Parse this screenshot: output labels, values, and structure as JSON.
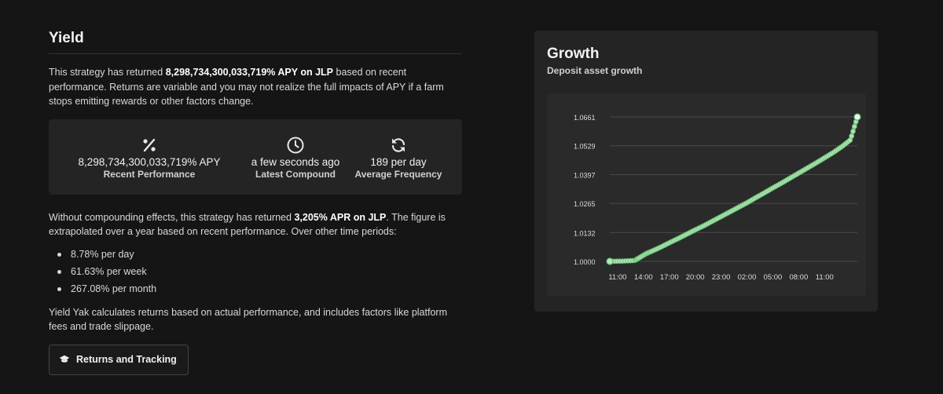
{
  "yield": {
    "title": "Yield",
    "p1_pre": "This strategy has returned ",
    "p1_bold": "8,298,734,300,033,719% APY on JLP",
    "p1_post": " based on recent performance. Returns are variable and you may not realize the full impacts of APY if a farm stops emitting rewards or other factors change.",
    "stats": [
      {
        "icon": "percent-icon",
        "value": "8,298,734,300,033,719% APY",
        "label": "Recent Performance"
      },
      {
        "icon": "clock-icon",
        "value": "a few seconds ago",
        "label": "Latest Compound"
      },
      {
        "icon": "refresh-icon",
        "value": "189 per day",
        "label": "Average Frequency"
      }
    ],
    "p2_pre": "Without compounding effects, this strategy has returned ",
    "p2_bold": "3,205% APR on JLP",
    "p2_post": ". The figure is extrapolated over a year based on recent performance. Over other time periods:",
    "periods": [
      "8.78% per day",
      "61.63% per week",
      "267.08% per month"
    ],
    "p3": "Yield Yak calculates returns based on actual performance, and includes factors like platform fees and trade slippage.",
    "button_label": "Returns and Tracking",
    "button_icon": "graduation-cap-icon"
  },
  "growth": {
    "title": "Growth",
    "subtitle": "Deposit asset growth"
  },
  "colors": {
    "background": "#151515",
    "panel": "#242424",
    "line": "#5cbd6a",
    "point_fill": "#b9e5bd"
  },
  "chart_data": {
    "type": "line",
    "title": "Growth",
    "subtitle": "Deposit asset growth",
    "xlabel": "",
    "ylabel": "",
    "x_ticks": [
      "11:00",
      "14:00",
      "17:00",
      "20:00",
      "23:00",
      "02:00",
      "05:00",
      "08:00",
      "11:00"
    ],
    "y_ticks": [
      "1.0000",
      "1.0132",
      "1.0265",
      "1.0397",
      "1.0529",
      "1.0661"
    ],
    "ylim": [
      1.0,
      1.0661
    ],
    "xlim_hours": [
      -0.9,
      27.8
    ],
    "grid": true,
    "legend": "none",
    "series": [
      {
        "x": [
          -0.9,
          0.5,
          2.0,
          2.5,
          3.3,
          4.0,
          5.0,
          6.0,
          7.0,
          8.0,
          9.0,
          10.0,
          11.0,
          12.0,
          13.0,
          14.0,
          15.0,
          16.0,
          17.0,
          18.0,
          19.0,
          20.0,
          21.0,
          22.0,
          23.0,
          24.0,
          25.0,
          26.0,
          27.0,
          27.8
        ],
        "y": [
          1.0,
          1.0001,
          1.0004,
          1.0016,
          1.0035,
          1.0047,
          1.0065,
          1.0085,
          1.0104,
          1.0124,
          1.0144,
          1.0163,
          1.0184,
          1.0205,
          1.0226,
          1.0247,
          1.0268,
          1.0291,
          1.0313,
          1.0336,
          1.0358,
          1.0381,
          1.0404,
          1.0427,
          1.045,
          1.0474,
          1.0498,
          1.0525,
          1.0556,
          1.0661
        ]
      }
    ]
  }
}
